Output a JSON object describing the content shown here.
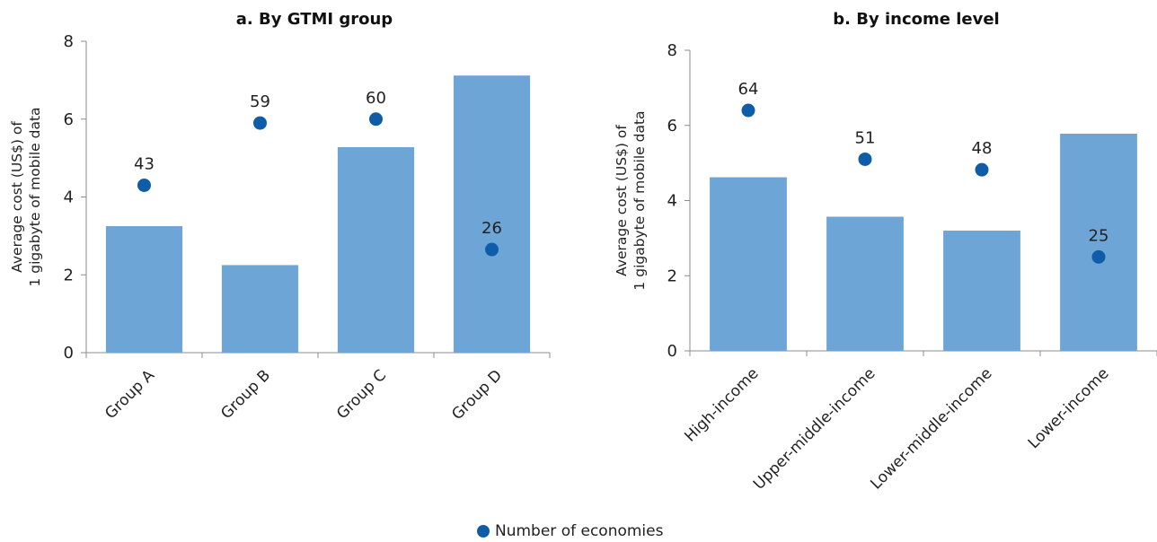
{
  "colors": {
    "bar": "#6ea5d7",
    "dot": "#0f5da8",
    "axis": "#8c8c8c"
  },
  "legend": {
    "label": "Number of economies",
    "icon": "circle-marker-icon"
  },
  "chart_data": [
    {
      "type": "bar",
      "title": "a. By GTMI group",
      "ylabel_lines": [
        "Average cost (US$) of",
        "1 gigabyte of mobile data"
      ],
      "ylim": [
        0,
        8
      ],
      "yticks": [
        0,
        2,
        4,
        6,
        8
      ],
      "categories": [
        "Group A",
        "Group B",
        "Group C",
        "Group D"
      ],
      "series": [
        {
          "name": "",
          "values": [
            3.25,
            2.25,
            5.28,
            7.12
          ]
        },
        {
          "name": "Number of economies",
          "kind": "scatter",
          "y": [
            4.3,
            5.9,
            6.0,
            2.65
          ],
          "labels": [
            "43",
            "59",
            "60",
            "26"
          ]
        }
      ]
    },
    {
      "type": "bar",
      "title": "b. By income level",
      "ylabel_lines": [
        "Average cost (US$) of",
        "1 gigabyte of mobile data"
      ],
      "ylim": [
        0,
        8
      ],
      "yticks": [
        0,
        2,
        4,
        6,
        8
      ],
      "categories": [
        "High-income",
        "Upper-middle-income",
        "Lower-middle-income",
        "Lower-income"
      ],
      "series": [
        {
          "name": "",
          "values": [
            4.62,
            3.57,
            3.2,
            5.78
          ]
        },
        {
          "name": "Number of economies",
          "kind": "scatter",
          "y": [
            6.4,
            5.1,
            4.82,
            2.5
          ],
          "labels": [
            "64",
            "51",
            "48",
            "25"
          ]
        }
      ]
    }
  ]
}
